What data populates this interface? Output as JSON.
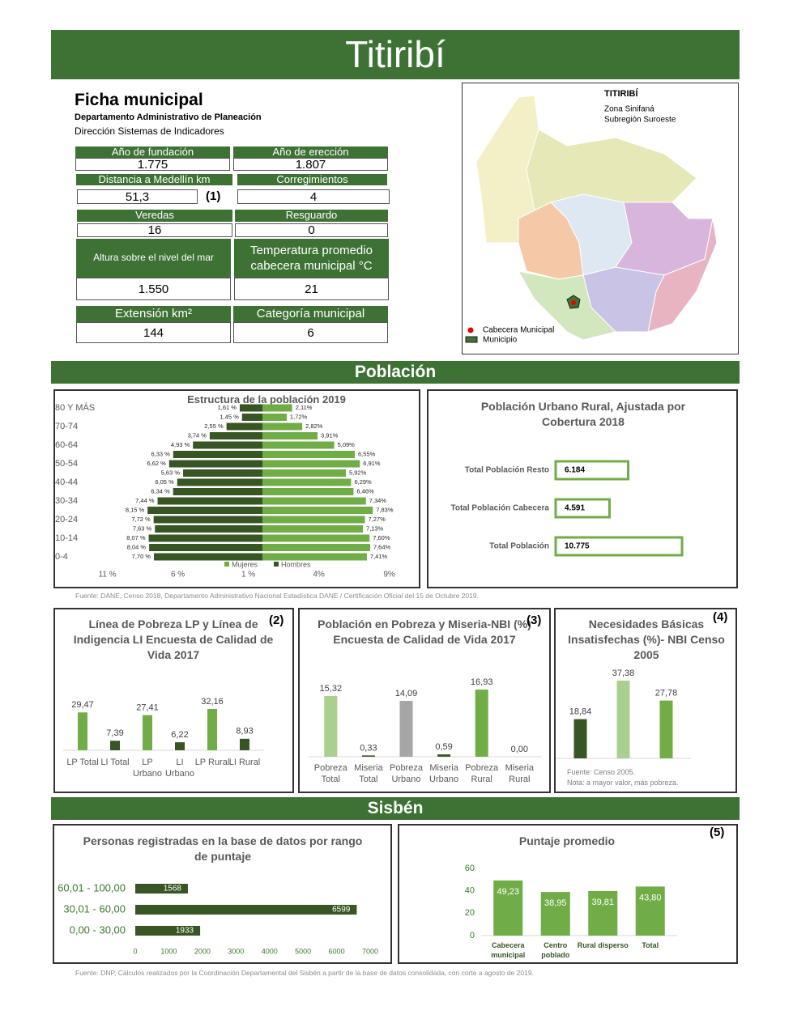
{
  "title": "Titiribí",
  "ficha": {
    "title": "Ficha municipal",
    "subtitle": "Departamento Administrativo de Planeación",
    "unit": "Dirección Sistemas de Indicadores",
    "fields": [
      {
        "label": "Año de fundación",
        "value": "1.775"
      },
      {
        "label": "Año de erección",
        "value": "1.807"
      },
      {
        "label": "Distancia a Medellín km",
        "value": "51,3",
        "note": "(1)"
      },
      {
        "label": "Corregimientos",
        "value": "4"
      },
      {
        "label": "Veredas",
        "value": "16"
      },
      {
        "label": "Resguardo",
        "value": "0"
      },
      {
        "label": "Altura sobre el nivel del mar",
        "value": "1.550"
      },
      {
        "label": "Temperatura promedio cabecera municipal °C",
        "value": "21"
      },
      {
        "label": "Extensión km²",
        "value": "144"
      },
      {
        "label": "Categoría municipal",
        "value": "6"
      }
    ]
  },
  "map": {
    "title": "TITIRIBÍ",
    "zone": "Zona Sinifaná",
    "subregion": "Subregión Suroeste",
    "legend": [
      "Cabecera Municipal",
      "Municipio"
    ]
  },
  "sections": {
    "poblacion": "Población",
    "sisben": "Sisbén"
  },
  "charts": {
    "pyramid": {
      "type": "pyramid",
      "title": "Estructura de la población 2019",
      "categories": [
        "80 Y MÁS",
        null,
        "70-74",
        null,
        "60-64",
        null,
        "50-54",
        null,
        "40-44",
        null,
        "30-34",
        null,
        "20-24",
        null,
        "10-14",
        null,
        "0-4"
      ],
      "series": [
        {
          "name": "Mujeres",
          "color": "#70ad47",
          "values": [
            2.11,
            1.72,
            2.82,
            3.91,
            5.09,
            6.55,
            6.91,
            5.92,
            6.29,
            6.46,
            7.34,
            7.83,
            7.27,
            7.13,
            7.6,
            7.64,
            7.41
          ],
          "value_labels": [
            "2,11%",
            "1,72%",
            "2,82%",
            "3,91%",
            "5,09%",
            "6,55%",
            "6,91%",
            "5,92%",
            "6,29%",
            "6,46%",
            "7,34%",
            "7,83%",
            "7,27%",
            "7,13%",
            "7,60%",
            "7,64%",
            "7,41%"
          ]
        },
        {
          "name": "Hombres",
          "color": "#375623",
          "values": [
            1.61,
            1.45,
            2.55,
            3.74,
            4.93,
            6.33,
            6.62,
            5.63,
            6.05,
            6.34,
            7.44,
            8.15,
            7.72,
            7.63,
            8.07,
            8.04,
            7.7
          ],
          "value_labels": [
            "1,61 %",
            "1,45 %",
            "2,55 %",
            "3,74 %",
            "4,93 %",
            "6,33 %",
            "6,62 %",
            "5,63 %",
            "6,05 %",
            "6,34 %",
            "7,44 %",
            "8,15 %",
            "7,72 %",
            "7,63 %",
            "8,07 %",
            "8,04 %",
            "7,70 %"
          ]
        }
      ],
      "xlim": [
        -12,
        11
      ],
      "xticks": [
        {
          "value": -11,
          "label": "11 %"
        },
        {
          "value": -6,
          "label": "6 %"
        },
        {
          "value": -1,
          "label": "1 %"
        },
        {
          "value": 4,
          "label": "4%"
        },
        {
          "value": 9,
          "label": "9%"
        }
      ]
    },
    "urban_rural": {
      "type": "hbar",
      "title": "Población Urbano Rural, Ajustada por Cobertura 2018",
      "categories": [
        "Total Población Resto",
        "Total Población Cabecera",
        "Total Población"
      ],
      "values": [
        6184,
        4591,
        10775
      ],
      "value_labels": [
        "6.184",
        "4.591",
        "10.775"
      ],
      "color": "#70ad47"
    },
    "lp": {
      "type": "bar",
      "title": "Línea de Pobreza LP y Línea de Indigencia LI Encuesta de Calidad de Vida 2017",
      "note": "(2)",
      "categories": [
        "LP Total",
        "LI Total",
        "LP Urbano",
        "LI Urbano",
        "LP Rural",
        "LI Rural"
      ],
      "values": [
        29.47,
        7.39,
        27.41,
        6.22,
        32.16,
        8.93
      ],
      "value_labels": [
        "29,47",
        "7,39",
        "27,41",
        "6,22",
        "32,16",
        "8,93"
      ],
      "colors": [
        "#70ad47",
        "#375623",
        "#70ad47",
        "#375623",
        "#70ad47",
        "#375623"
      ]
    },
    "nbi_ecv": {
      "type": "bar",
      "title": "Población en Pobreza y Miseria-NBI (%) Encuesta de Calidad de Vida 2017",
      "note": "(3)",
      "categories": [
        "Pobreza Total",
        "Miseria Total",
        "Pobreza Urbano",
        "Miseria Urbano",
        "Pobreza Rural",
        "Miseria Rural"
      ],
      "values": [
        15.32,
        0.33,
        14.09,
        0.59,
        16.93,
        0.0
      ],
      "value_labels": [
        "15,32",
        "0,33",
        "14,09",
        "0,59",
        "16,93",
        "0,00"
      ],
      "colors": [
        "#a9d08e",
        "#375623",
        "#a6a6a6",
        "#375623",
        "#70ad47",
        "#375623"
      ]
    },
    "nbi_censo": {
      "type": "bar",
      "title": "Necesidades Básicas Insatisfechas (%)- NBI Censo 2005",
      "note": "(4)",
      "values": [
        18.84,
        37.38,
        27.78
      ],
      "value_labels": [
        "18,84",
        "37,38",
        "27,78"
      ],
      "colors": [
        "#375623",
        "#a9d08e",
        "#70ad47"
      ],
      "footnotes": [
        "Fuente: Censo 2005.",
        "Nota: a mayor valor, más pobreza."
      ]
    },
    "sisben_rango": {
      "type": "hbar",
      "title": "Personas registradas en la base de datos por rango de puntaje",
      "categories": [
        "60,01 - 100,00",
        "30,01 - 60,00",
        "0,00 - 30,00"
      ],
      "values": [
        1568,
        6599,
        1933
      ],
      "color": "#375623",
      "xlim": [
        0,
        7000
      ],
      "xticks": [
        0,
        1000,
        2000,
        3000,
        4000,
        5000,
        6000,
        7000
      ]
    },
    "sisben_puntaje": {
      "type": "bar",
      "title": "Puntaje promedio",
      "note": "(5)",
      "categories": [
        "Cabecera municipal",
        "Centro poblado",
        "Rural disperso",
        "Total"
      ],
      "values": [
        49.23,
        38.95,
        39.81,
        43.8
      ],
      "value_labels": [
        "49,23",
        "38,95",
        "39,81",
        "43,80"
      ],
      "color": "#70ad47",
      "ylim": [
        0,
        60
      ],
      "yticks": [
        0,
        20,
        40,
        60
      ]
    }
  },
  "sources": {
    "poblacion": "Fuente: DANE, Censo 2018, Departamento Administrativo Nacional Estadística DANE / Certificación Oficial del 15 de Octubre 2019.",
    "sisben": "Fuente:  DNP, Cálculos realizados por la Coordinación Departamental del Sisbén a partir de la base de datos consolidada, con corte a agosto de 2019."
  }
}
